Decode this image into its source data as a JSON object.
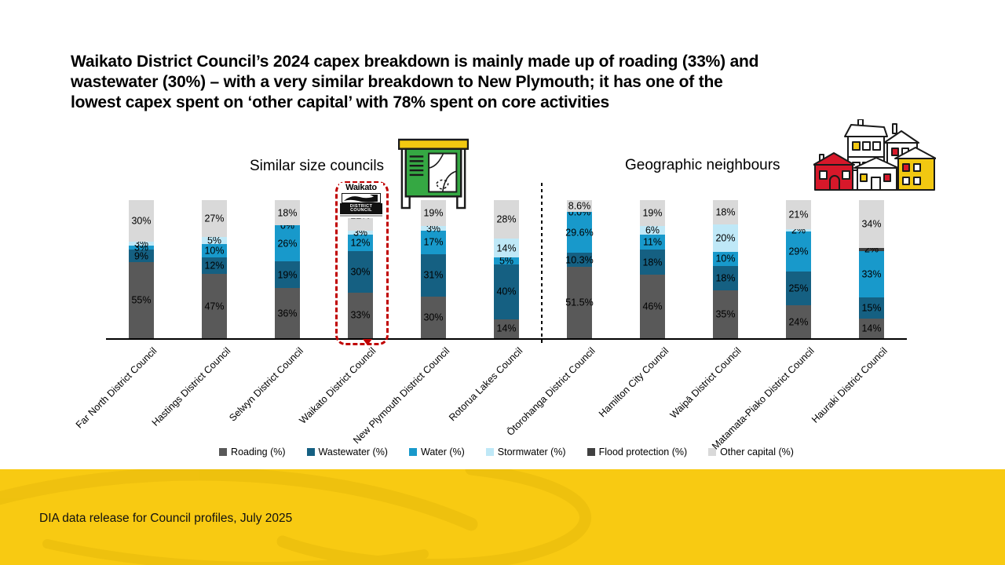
{
  "slide": {
    "title_lines": [
      "Waikato District Council’s 2024 capex breakdown is mainly made up of roading (33%) and",
      "wastewater (30%) – with a very similar breakdown to New Plymouth; it has one of the",
      "lowest capex spent on ‘other capital’ with 78% spent on core activities"
    ],
    "footer": "DIA data release for Council profiles, July 2025",
    "footer_bg": "#F8CA12",
    "highlight_color": "#C00000"
  },
  "waikato_logo": {
    "line1": "Waikato",
    "line2": "DISTRICT COUNCIL"
  },
  "chart_data": {
    "type": "bar",
    "subtype": "100%-stacked-columns",
    "unit": "%",
    "legend_position": "bottom",
    "groups": [
      {
        "label": "Similar size councils",
        "icon": "map-sign-icon"
      },
      {
        "label": "Geographic neighbours",
        "icon": "houses-icon"
      }
    ],
    "series": [
      {
        "key": "roading",
        "name": "Roading (%)",
        "color": "#595959"
      },
      {
        "key": "wastewater",
        "name": "Wastewater (%)",
        "color": "#156082"
      },
      {
        "key": "water",
        "name": "Water (%)",
        "color": "#1899CB"
      },
      {
        "key": "stormwater",
        "name": "Stormwater (%)",
        "color": "#BFE8F7"
      },
      {
        "key": "flood",
        "name": "Flood protection (%)",
        "color": "#404040"
      },
      {
        "key": "other",
        "name": "Other capital (%)",
        "color": "#D9D9D9"
      }
    ],
    "councils": [
      {
        "name": "Far North District Council",
        "group": 0,
        "highlight": false,
        "segments": [
          {
            "series": "roading",
            "value": 55,
            "label": "55%"
          },
          {
            "series": "wastewater",
            "value": 9,
            "label": "9%"
          },
          {
            "series": "water",
            "value": 3,
            "label": "3%"
          },
          {
            "series": "stormwater",
            "value": 3,
            "label": "3%"
          },
          {
            "series": "other",
            "value": 30,
            "label": "30%"
          }
        ]
      },
      {
        "name": "Hastings District Council",
        "group": 0,
        "highlight": false,
        "segments": [
          {
            "series": "roading",
            "value": 47,
            "label": "47%"
          },
          {
            "series": "wastewater",
            "value": 12,
            "label": "12%"
          },
          {
            "series": "water",
            "value": 10,
            "label": "10%"
          },
          {
            "series": "stormwater",
            "value": 5,
            "label": "5%"
          },
          {
            "series": "other",
            "value": 27,
            "label": "27%"
          }
        ]
      },
      {
        "name": "Selwyn District Council",
        "group": 0,
        "highlight": false,
        "segments": [
          {
            "series": "roading",
            "value": 36,
            "label": "36%"
          },
          {
            "series": "wastewater",
            "value": 19,
            "label": "19%"
          },
          {
            "series": "water",
            "value": 26,
            "label": "26%"
          },
          {
            "series": "stormwater",
            "value": 0,
            "label": "0%"
          },
          {
            "series": "other",
            "value": 18,
            "label": "18%"
          }
        ]
      },
      {
        "name": "Waikato District Council",
        "group": 0,
        "highlight": true,
        "segments": [
          {
            "series": "roading",
            "value": 33,
            "label": "33%"
          },
          {
            "series": "wastewater",
            "value": 30,
            "label": "30%"
          },
          {
            "series": "water",
            "value": 12,
            "label": "12%"
          },
          {
            "series": "stormwater",
            "value": 3,
            "label": "3%"
          },
          {
            "series": "other",
            "value": 22,
            "label": "22%"
          }
        ]
      },
      {
        "name": "New Plymouth District Council",
        "group": 0,
        "highlight": false,
        "segments": [
          {
            "series": "roading",
            "value": 30,
            "label": "30%"
          },
          {
            "series": "wastewater",
            "value": 31,
            "label": "31%"
          },
          {
            "series": "water",
            "value": 17,
            "label": "17%"
          },
          {
            "series": "stormwater",
            "value": 3,
            "label": "3%"
          },
          {
            "series": "other",
            "value": 19,
            "label": "19%"
          }
        ]
      },
      {
        "name": "Rotorua Lakes Council",
        "group": 0,
        "highlight": false,
        "segments": [
          {
            "series": "roading",
            "value": 14,
            "label": "14%"
          },
          {
            "series": "wastewater",
            "value": 40,
            "label": "40%"
          },
          {
            "series": "water",
            "value": 5,
            "label": "5%"
          },
          {
            "series": "stormwater",
            "value": 14,
            "label": "14%"
          },
          {
            "series": "other",
            "value": 28,
            "label": "28%"
          }
        ]
      },
      {
        "name": "Ōtorohanga District Council",
        "group": 1,
        "highlight": false,
        "segments": [
          {
            "series": "roading",
            "value": 51.5,
            "label": "51.5%"
          },
          {
            "series": "wastewater",
            "value": 10.3,
            "label": "10.3%"
          },
          {
            "series": "water",
            "value": 29.6,
            "label": "29.6%"
          },
          {
            "series": "stormwater",
            "value": 0,
            "label": "0.0%"
          },
          {
            "series": "other",
            "value": 8.6,
            "label": "8.6%"
          }
        ]
      },
      {
        "name": "Hamilton City Council",
        "group": 1,
        "highlight": false,
        "segments": [
          {
            "series": "roading",
            "value": 46,
            "label": "46%"
          },
          {
            "series": "wastewater",
            "value": 18,
            "label": "18%"
          },
          {
            "series": "water",
            "value": 11,
            "label": "11%"
          },
          {
            "series": "stormwater",
            "value": 6,
            "label": "6%"
          },
          {
            "series": "other",
            "value": 19,
            "label": "19%"
          }
        ]
      },
      {
        "name": "Waipā District Council",
        "group": 1,
        "highlight": false,
        "segments": [
          {
            "series": "roading",
            "value": 35,
            "label": "35%"
          },
          {
            "series": "wastewater",
            "value": 18,
            "label": "18%"
          },
          {
            "series": "water",
            "value": 10,
            "label": "10%"
          },
          {
            "series": "stormwater",
            "value": 20,
            "label": "20%"
          },
          {
            "series": "other",
            "value": 18,
            "label": "18%"
          }
        ]
      },
      {
        "name": "Matamata-Piako District Council",
        "group": 1,
        "highlight": false,
        "segments": [
          {
            "series": "roading",
            "value": 24,
            "label": "24%"
          },
          {
            "series": "wastewater",
            "value": 25,
            "label": "25%"
          },
          {
            "series": "water",
            "value": 29,
            "label": "29%"
          },
          {
            "series": "stormwater",
            "value": 2,
            "label": "2%"
          },
          {
            "series": "other",
            "value": 21,
            "label": "21%"
          }
        ]
      },
      {
        "name": "Hauraki District Council",
        "group": 1,
        "highlight": false,
        "segments": [
          {
            "series": "roading",
            "value": 14,
            "label": "14%"
          },
          {
            "series": "wastewater",
            "value": 15,
            "label": "15%"
          },
          {
            "series": "water",
            "value": 33,
            "label": "33%"
          },
          {
            "series": "flood",
            "value": 2,
            "label": "2%"
          },
          {
            "series": "other",
            "value": 34,
            "label": "34%"
          }
        ]
      }
    ]
  }
}
